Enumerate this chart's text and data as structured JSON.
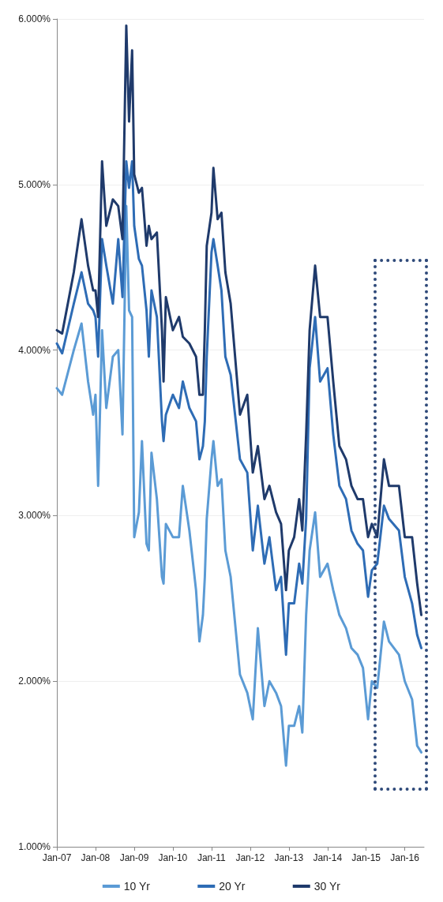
{
  "chart_data": {
    "type": "line",
    "x": [
      "2007-01-01",
      "2007-02-20",
      "2007-06-10",
      "2007-08-22",
      "2007-10-23",
      "2007-12-10",
      "2008-01-01",
      "2008-01-26",
      "2008-03-03",
      "2008-04-12",
      "2008-06-13",
      "2008-08-03",
      "2008-09-12",
      "2008-10-18",
      "2008-11-13",
      "2008-12-12",
      "2009-01-01",
      "2009-02-14",
      "2009-03-15",
      "2009-04-27",
      "2009-05-19",
      "2009-06-13",
      "2009-08-03",
      "2009-09-20",
      "2009-10-05",
      "2009-10-27",
      "2010-01-01",
      "2010-02-28",
      "2010-04-05",
      "2010-06-06",
      "2010-08-08",
      "2010-09-09",
      "2010-10-12",
      "2010-10-30",
      "2010-11-17",
      "2011-01-01",
      "2011-01-19",
      "2011-02-28",
      "2011-04-05",
      "2011-05-12",
      "2011-07-01",
      "2011-09-27",
      "2011-12-05",
      "2012-01-26",
      "2012-03-14",
      "2012-05-15",
      "2012-07-01",
      "2012-09-02",
      "2012-10-19",
      "2012-12-05",
      "2013-01-01",
      "2013-02-20",
      "2013-04-08",
      "2013-05-08",
      "2013-06-13",
      "2013-07-16",
      "2013-09-06",
      "2013-10-23",
      "2014-01-01",
      "2014-02-24",
      "2014-04-23",
      "2014-06-25",
      "2014-08-15",
      "2014-10-12",
      "2014-12-02",
      "2015-01-19",
      "2015-02-24",
      "2015-04-16",
      "2015-06-18",
      "2015-08-05",
      "2015-11-07",
      "2016-01-01",
      "2016-03-10",
      "2016-04-27",
      "2016-06-05"
    ],
    "series": [
      {
        "name": "10 Yr",
        "color": "#5b9bd5",
        "values": [
          3.77,
          3.73,
          4.0,
          4.16,
          3.81,
          3.61,
          3.73,
          3.18,
          4.12,
          3.65,
          3.96,
          4.0,
          3.49,
          4.87,
          4.24,
          4.2,
          2.87,
          3.02,
          3.45,
          2.83,
          2.79,
          3.38,
          3.1,
          2.63,
          2.59,
          2.95,
          2.87,
          2.87,
          3.18,
          2.91,
          2.55,
          2.24,
          2.4,
          2.63,
          2.98,
          3.34,
          3.45,
          3.18,
          3.22,
          2.79,
          2.63,
          2.04,
          1.93,
          1.77,
          2.32,
          1.85,
          2.0,
          1.93,
          1.85,
          1.49,
          1.73,
          1.73,
          1.85,
          1.69,
          2.4,
          2.79,
          3.02,
          2.63,
          2.71,
          2.55,
          2.4,
          2.32,
          2.2,
          2.16,
          2.08,
          1.77,
          2.0,
          1.96,
          2.36,
          2.24,
          2.16,
          2.0,
          1.89,
          1.61,
          1.57
        ]
      },
      {
        "name": "20 Yr",
        "color": "#2e6cb5",
        "values": [
          4.04,
          3.98,
          4.28,
          4.47,
          4.28,
          4.24,
          4.2,
          3.96,
          4.67,
          4.51,
          4.28,
          4.67,
          4.32,
          5.14,
          4.98,
          5.14,
          4.75,
          4.55,
          4.51,
          4.24,
          3.96,
          4.36,
          4.2,
          3.57,
          3.45,
          3.61,
          3.73,
          3.65,
          3.81,
          3.65,
          3.57,
          3.34,
          3.42,
          3.57,
          3.96,
          4.59,
          4.67,
          4.51,
          4.36,
          3.96,
          3.85,
          3.34,
          3.26,
          2.79,
          3.06,
          2.71,
          2.87,
          2.55,
          2.63,
          2.16,
          2.47,
          2.47,
          2.71,
          2.59,
          2.98,
          3.89,
          4.2,
          3.81,
          3.89,
          3.49,
          3.18,
          3.1,
          2.91,
          2.83,
          2.79,
          2.51,
          2.67,
          2.71,
          3.06,
          2.98,
          2.91,
          2.63,
          2.47,
          2.28,
          2.2
        ]
      },
      {
        "name": "30 Yr",
        "color": "#1f3a6b",
        "values": [
          4.12,
          4.1,
          4.47,
          4.79,
          4.51,
          4.36,
          4.36,
          4.2,
          5.14,
          4.75,
          4.91,
          4.87,
          4.67,
          5.96,
          5.38,
          5.81,
          5.06,
          4.95,
          4.98,
          4.63,
          4.75,
          4.67,
          4.71,
          4.12,
          3.81,
          4.32,
          4.12,
          4.2,
          4.08,
          4.04,
          3.96,
          3.73,
          3.73,
          4.12,
          4.63,
          4.83,
          5.1,
          4.79,
          4.83,
          4.47,
          4.28,
          3.61,
          3.73,
          3.26,
          3.42,
          3.1,
          3.18,
          3.02,
          2.95,
          2.55,
          2.79,
          2.87,
          3.1,
          2.91,
          3.49,
          4.12,
          4.51,
          4.2,
          4.2,
          3.81,
          3.42,
          3.34,
          3.18,
          3.1,
          3.1,
          2.87,
          2.95,
          2.87,
          3.34,
          3.18,
          3.18,
          2.87,
          2.87,
          2.59,
          2.4
        ]
      }
    ],
    "xlim": [
      "2007-01-01",
      "2016-07-01"
    ],
    "xticks": [
      {
        "value": "2007-01-01",
        "label": "Jan-07"
      },
      {
        "value": "2008-01-01",
        "label": "Jan-08"
      },
      {
        "value": "2009-01-01",
        "label": "Jan-09"
      },
      {
        "value": "2010-01-01",
        "label": "Jan-10"
      },
      {
        "value": "2011-01-01",
        "label": "Jan-11"
      },
      {
        "value": "2012-01-01",
        "label": "Jan-12"
      },
      {
        "value": "2013-01-01",
        "label": "Jan-13"
      },
      {
        "value": "2014-01-01",
        "label": "Jan-14"
      },
      {
        "value": "2015-01-01",
        "label": "Jan-15"
      },
      {
        "value": "2016-01-01",
        "label": "Jan-16"
      }
    ],
    "ylim": [
      1,
      6
    ],
    "yticks": [
      {
        "value": 1,
        "label": "1.000%"
      },
      {
        "value": 2,
        "label": "2.000%"
      },
      {
        "value": 3,
        "label": "3.000%"
      },
      {
        "value": 4,
        "label": "4.000%"
      },
      {
        "value": 5,
        "label": "5.000%"
      },
      {
        "value": 6,
        "label": "6.000%"
      }
    ],
    "grid": "y",
    "legend": "bottom",
    "marker": "none",
    "line_style": "solid"
  }
}
